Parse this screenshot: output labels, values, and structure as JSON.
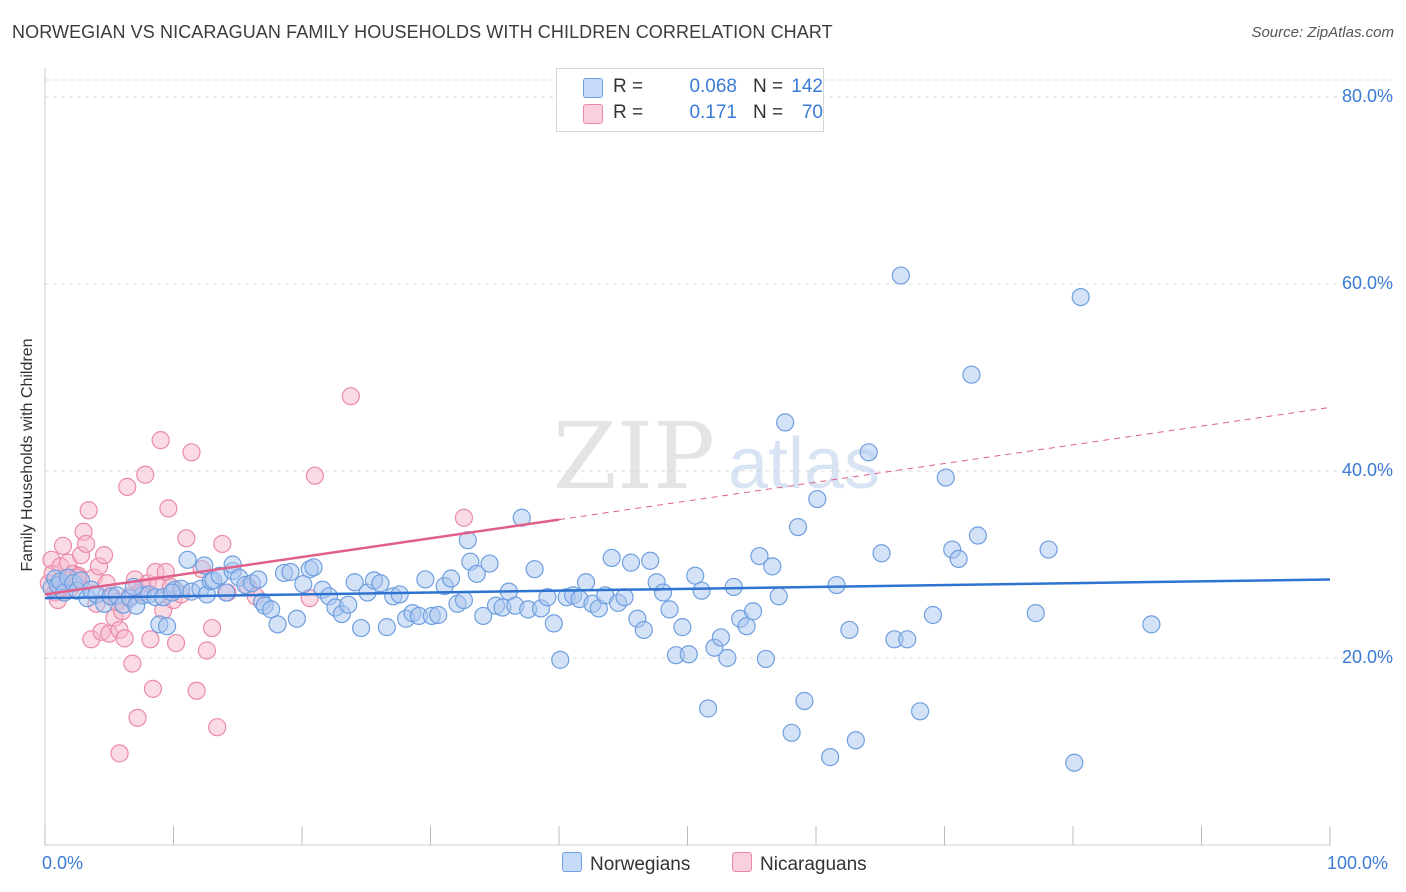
{
  "header": {
    "title": "NORWEGIAN VS NICARAGUAN FAMILY HOUSEHOLDS WITH CHILDREN CORRELATION CHART",
    "source": "Source: ZipAtlas.com"
  },
  "watermark": {
    "zip": "ZIP",
    "atlas": "atlas"
  },
  "legend": {
    "rows": [
      {
        "r_label": "R =",
        "r_value": "0.068",
        "n_label": "N =",
        "n_value": "142",
        "color": "#a9c6f0"
      },
      {
        "r_label": "R =",
        "r_value": "0.171",
        "n_label": "N =",
        "n_value": "70",
        "color": "#f5b7c9"
      }
    ]
  },
  "bottom_legend": {
    "norwegians": "Norwegians",
    "nicaraguans": "Nicaraguans"
  },
  "colors": {
    "blue_fill": "#a9c6f0",
    "blue_stroke": "#6f9fe0",
    "blue_line": "#2f73d0",
    "pink_fill": "#f5b7c9",
    "pink_stroke": "#eb8aa8",
    "pink_line": "#e0608a",
    "grid": "#dddddd",
    "axis_text": "#3a7bd5"
  },
  "chart_data": {
    "type": "scatter",
    "title": "NORWEGIAN VS NICARAGUAN FAMILY HOUSEHOLDS WITH CHILDREN CORRELATION CHART",
    "xlabel": "",
    "ylabel": "Family Households with Children",
    "xlim": [
      0,
      100
    ],
    "ylim": [
      0,
      80
    ],
    "x_tick_labels": [
      "0.0%",
      "100.0%"
    ],
    "y_ticks": [
      20,
      40,
      60,
      80
    ],
    "y_tick_labels": [
      "20.0%",
      "40.0%",
      "60.0%",
      "80.0%"
    ],
    "grid": true,
    "legend_position": "top-center",
    "series": [
      {
        "name": "Norwegians",
        "R": 0.068,
        "N": 142,
        "trend": {
          "x": [
            0,
            100
          ],
          "y": [
            26.4,
            28.4
          ],
          "dashed_from": null
        },
        "points": [
          [
            0.5,
            27.5
          ],
          [
            0.8,
            28.5
          ],
          [
            1.0,
            27.8
          ],
          [
            1.2,
            28.2
          ],
          [
            1.5,
            27.0
          ],
          [
            1.8,
            28.6
          ],
          [
            2.2,
            28.0
          ],
          [
            2.5,
            27.2
          ],
          [
            2.8,
            28.3
          ],
          [
            3.3,
            26.4
          ],
          [
            3.6,
            27.3
          ],
          [
            4.0,
            26.8
          ],
          [
            4.6,
            25.8
          ],
          [
            5.1,
            26.6
          ],
          [
            5.6,
            26.7
          ],
          [
            6.1,
            25.7
          ],
          [
            6.6,
            26.4
          ],
          [
            7.1,
            25.6
          ],
          [
            7.6,
            26.7
          ],
          [
            8.1,
            26.8
          ],
          [
            8.6,
            26.5
          ],
          [
            8.9,
            23.6
          ],
          [
            9.2,
            26.5
          ],
          [
            9.5,
            23.4
          ],
          [
            10.1,
            27.3
          ],
          [
            10.6,
            27.4
          ],
          [
            11.1,
            30.5
          ],
          [
            11.4,
            27.1
          ],
          [
            12.1,
            27.4
          ],
          [
            12.6,
            26.8
          ],
          [
            12.9,
            28.2
          ],
          [
            13.1,
            28.3
          ],
          [
            13.6,
            28.8
          ],
          [
            14.1,
            27.0
          ],
          [
            14.6,
            29.3
          ],
          [
            14.6,
            30.0
          ],
          [
            15.1,
            28.6
          ],
          [
            15.6,
            27.8
          ],
          [
            16.1,
            28.0
          ],
          [
            16.6,
            28.4
          ],
          [
            16.9,
            26.0
          ],
          [
            17.1,
            25.6
          ],
          [
            17.6,
            25.2
          ],
          [
            18.1,
            23.6
          ],
          [
            18.6,
            29.1
          ],
          [
            19.1,
            29.2
          ],
          [
            19.6,
            24.2
          ],
          [
            20.1,
            27.9
          ],
          [
            20.6,
            29.5
          ],
          [
            20.9,
            29.7
          ],
          [
            21.6,
            27.3
          ],
          [
            22.1,
            26.6
          ],
          [
            22.6,
            25.4
          ],
          [
            23.1,
            24.7
          ],
          [
            23.6,
            25.7
          ],
          [
            24.1,
            28.1
          ],
          [
            24.6,
            23.2
          ],
          [
            25.1,
            27.0
          ],
          [
            25.6,
            28.3
          ],
          [
            26.1,
            28.0
          ],
          [
            26.6,
            23.3
          ],
          [
            27.1,
            26.6
          ],
          [
            27.6,
            26.8
          ],
          [
            28.1,
            24.2
          ],
          [
            28.6,
            24.8
          ],
          [
            29.1,
            24.5
          ],
          [
            29.6,
            28.4
          ],
          [
            30.1,
            24.5
          ],
          [
            30.6,
            24.6
          ],
          [
            31.1,
            27.7
          ],
          [
            31.6,
            28.5
          ],
          [
            32.1,
            25.8
          ],
          [
            32.6,
            26.2
          ],
          [
            32.9,
            32.6
          ],
          [
            33.1,
            30.3
          ],
          [
            33.6,
            29.0
          ],
          [
            34.1,
            24.5
          ],
          [
            34.6,
            30.1
          ],
          [
            35.1,
            25.6
          ],
          [
            35.6,
            25.4
          ],
          [
            36.1,
            27.1
          ],
          [
            36.6,
            25.6
          ],
          [
            37.1,
            35.0
          ],
          [
            37.6,
            25.2
          ],
          [
            38.1,
            29.5
          ],
          [
            38.6,
            25.3
          ],
          [
            39.1,
            26.5
          ],
          [
            39.6,
            23.7
          ],
          [
            40.1,
            19.8
          ],
          [
            40.6,
            26.5
          ],
          [
            41.1,
            26.7
          ],
          [
            41.6,
            26.3
          ],
          [
            42.1,
            28.1
          ],
          [
            42.6,
            25.8
          ],
          [
            43.1,
            25.3
          ],
          [
            43.6,
            26.7
          ],
          [
            44.1,
            30.7
          ],
          [
            44.6,
            25.9
          ],
          [
            45.1,
            26.5
          ],
          [
            45.6,
            30.2
          ],
          [
            46.1,
            24.2
          ],
          [
            46.6,
            23.0
          ],
          [
            47.1,
            30.4
          ],
          [
            47.6,
            28.1
          ],
          [
            48.1,
            27.0
          ],
          [
            48.6,
            25.2
          ],
          [
            49.1,
            20.3
          ],
          [
            49.6,
            23.3
          ],
          [
            50.1,
            20.4
          ],
          [
            50.6,
            28.8
          ],
          [
            51.1,
            27.2
          ],
          [
            51.6,
            14.6
          ],
          [
            52.1,
            21.1
          ],
          [
            52.6,
            22.2
          ],
          [
            53.1,
            20.0
          ],
          [
            53.6,
            27.6
          ],
          [
            54.1,
            24.2
          ],
          [
            54.6,
            23.4
          ],
          [
            55.1,
            25.0
          ],
          [
            55.6,
            30.9
          ],
          [
            56.1,
            19.9
          ],
          [
            56.6,
            29.8
          ],
          [
            57.1,
            26.6
          ],
          [
            57.6,
            45.2
          ],
          [
            58.1,
            12.0
          ],
          [
            58.6,
            34.0
          ],
          [
            59.1,
            15.4
          ],
          [
            60.1,
            37.0
          ],
          [
            61.1,
            9.4
          ],
          [
            61.6,
            27.8
          ],
          [
            62.6,
            23.0
          ],
          [
            63.1,
            11.2
          ],
          [
            64.1,
            42.0
          ],
          [
            65.1,
            31.2
          ],
          [
            66.1,
            22.0
          ],
          [
            66.6,
            60.9
          ],
          [
            67.1,
            22.0
          ],
          [
            68.1,
            14.3
          ],
          [
            69.1,
            24.6
          ],
          [
            70.1,
            39.3
          ],
          [
            70.6,
            31.6
          ],
          [
            71.1,
            30.6
          ],
          [
            72.1,
            50.3
          ],
          [
            72.6,
            33.1
          ],
          [
            77.1,
            24.8
          ],
          [
            78.1,
            31.6
          ],
          [
            80.1,
            8.8
          ],
          [
            80.6,
            58.6
          ],
          [
            86.1,
            23.6
          ],
          [
            6.9,
            27.6
          ],
          [
            9.9,
            27.0
          ],
          [
            12.4,
            29.9
          ]
        ]
      },
      {
        "name": "Nicaraguans",
        "R": 0.171,
        "N": 70,
        "trend": {
          "x": [
            0,
            100
          ],
          "y": [
            26.8,
            46.8
          ],
          "dashed_from": 40
        },
        "points": [
          [
            0.3,
            28.0
          ],
          [
            0.5,
            30.5
          ],
          [
            0.6,
            29.0
          ],
          [
            0.8,
            27.0
          ],
          [
            1.0,
            26.2
          ],
          [
            1.2,
            29.8
          ],
          [
            1.4,
            32.0
          ],
          [
            1.6,
            28.5
          ],
          [
            1.8,
            30.2
          ],
          [
            2.0,
            27.5
          ],
          [
            2.2,
            29.0
          ],
          [
            2.4,
            28.2
          ],
          [
            2.6,
            28.8
          ],
          [
            2.8,
            31.0
          ],
          [
            3.0,
            33.5
          ],
          [
            3.2,
            32.2
          ],
          [
            3.4,
            35.8
          ],
          [
            3.6,
            22.0
          ],
          [
            3.8,
            28.6
          ],
          [
            4.0,
            25.8
          ],
          [
            4.2,
            29.8
          ],
          [
            4.4,
            22.8
          ],
          [
            4.6,
            31.0
          ],
          [
            4.8,
            28.0
          ],
          [
            5.0,
            22.6
          ],
          [
            5.2,
            26.6
          ],
          [
            5.4,
            24.3
          ],
          [
            5.6,
            26.0
          ],
          [
            5.8,
            23.0
          ],
          [
            6.0,
            25.0
          ],
          [
            6.2,
            22.1
          ],
          [
            6.4,
            38.3
          ],
          [
            6.6,
            26.6
          ],
          [
            6.8,
            19.4
          ],
          [
            7.0,
            28.4
          ],
          [
            7.2,
            13.6
          ],
          [
            7.4,
            27.0
          ],
          [
            7.6,
            27.5
          ],
          [
            7.8,
            39.6
          ],
          [
            8.0,
            28.0
          ],
          [
            8.2,
            22.0
          ],
          [
            8.4,
            16.7
          ],
          [
            8.6,
            29.2
          ],
          [
            8.8,
            27.8
          ],
          [
            9.0,
            43.3
          ],
          [
            9.2,
            25.1
          ],
          [
            9.4,
            29.2
          ],
          [
            9.6,
            36.0
          ],
          [
            9.8,
            27.6
          ],
          [
            10.0,
            26.2
          ],
          [
            10.2,
            21.6
          ],
          [
            10.6,
            26.8
          ],
          [
            11.0,
            32.8
          ],
          [
            11.4,
            42.0
          ],
          [
            11.8,
            16.5
          ],
          [
            12.2,
            29.5
          ],
          [
            12.6,
            20.8
          ],
          [
            13.0,
            23.2
          ],
          [
            13.4,
            12.6
          ],
          [
            13.8,
            32.2
          ],
          [
            14.2,
            27.0
          ],
          [
            15.8,
            27.6
          ],
          [
            16.4,
            26.6
          ],
          [
            20.6,
            26.4
          ],
          [
            21.0,
            39.5
          ],
          [
            23.8,
            48.0
          ],
          [
            32.6,
            35.0
          ],
          [
            5.8,
            9.8
          ],
          [
            2.6,
            28.6
          ],
          [
            1.2,
            27.5
          ]
        ]
      }
    ]
  }
}
